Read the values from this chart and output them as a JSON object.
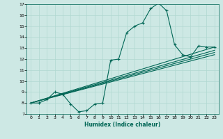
{
  "xlabel": "Humidex (Indice chaleur)",
  "ylabel": "",
  "bg_color": "#cde8e4",
  "grid_color": "#b0d8d0",
  "line_color": "#006655",
  "xlim": [
    -0.5,
    23.5
  ],
  "ylim": [
    7,
    17
  ],
  "xticks": [
    0,
    1,
    2,
    3,
    4,
    5,
    6,
    7,
    8,
    9,
    10,
    11,
    12,
    13,
    14,
    15,
    16,
    17,
    18,
    19,
    20,
    21,
    22,
    23
  ],
  "yticks": [
    7,
    8,
    9,
    10,
    11,
    12,
    13,
    14,
    15,
    16,
    17
  ],
  "line1_x": [
    0,
    1,
    2,
    3,
    4,
    5,
    6,
    7,
    8,
    9,
    10,
    11,
    12,
    13,
    14,
    15,
    16,
    17,
    18,
    19,
    20,
    21,
    22,
    23
  ],
  "line1_y": [
    8.0,
    8.0,
    8.3,
    9.0,
    8.8,
    7.9,
    7.2,
    7.3,
    7.9,
    8.0,
    11.9,
    12.0,
    14.4,
    15.0,
    15.3,
    16.6,
    17.1,
    16.4,
    13.3,
    12.4,
    12.2,
    13.2,
    13.1,
    13.1
  ],
  "line2_x": [
    0,
    23
  ],
  "line2_y": [
    8.0,
    13.1
  ],
  "line3_x": [
    0,
    23
  ],
  "line3_y": [
    8.0,
    12.6
  ],
  "line4_x": [
    0,
    23
  ],
  "line4_y": [
    8.0,
    12.8
  ],
  "line5_x": [
    0,
    23
  ],
  "line5_y": [
    8.0,
    12.4
  ]
}
